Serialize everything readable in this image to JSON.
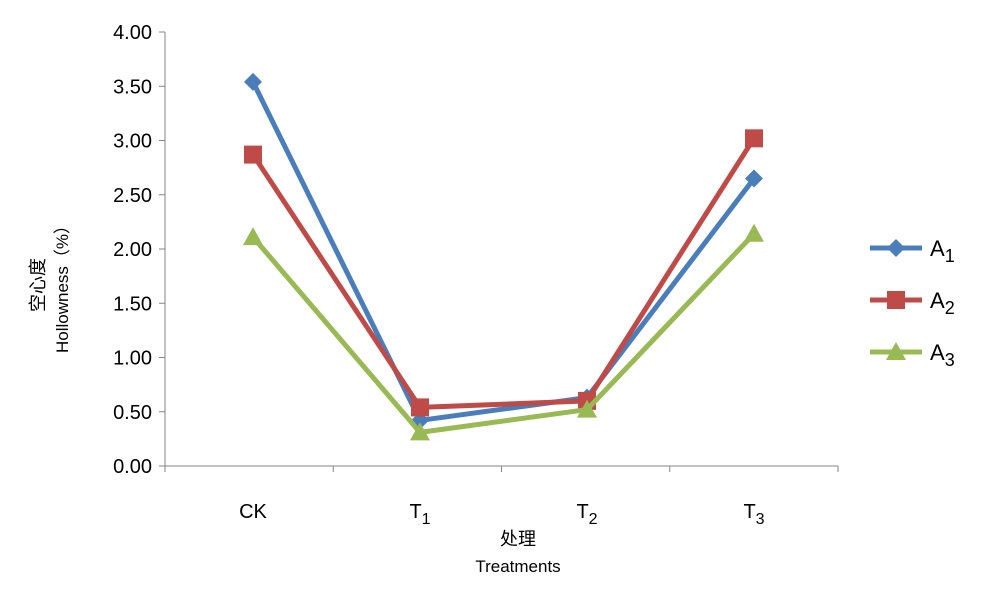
{
  "chart_data": {
    "type": "line",
    "categories": [
      "CK",
      "T1",
      "T2",
      "T3"
    ],
    "category_subscripts": [
      "",
      "1",
      "2",
      "3"
    ],
    "category_bases": [
      "CK",
      "T",
      "T",
      "T"
    ],
    "ylabel_cn": "空心度",
    "ylabel_en": "Hollowness（%）",
    "xlabel_cn": "处理",
    "xlabel_en": "Treatments",
    "ylim": [
      0,
      4
    ],
    "yticks": [
      "0.00",
      "0.50",
      "1.00",
      "1.50",
      "2.00",
      "2.50",
      "3.00",
      "3.50",
      "4.00"
    ],
    "legend_position": "right",
    "series": [
      {
        "name": "A1",
        "base": "A",
        "sub": "1",
        "color": "#4a7ebb",
        "marker": "diamond",
        "values": [
          3.54,
          0.42,
          0.63,
          2.65
        ]
      },
      {
        "name": "A2",
        "base": "A",
        "sub": "2",
        "color": "#be4b48",
        "marker": "square",
        "values": [
          2.87,
          0.54,
          0.6,
          3.02
        ]
      },
      {
        "name": "A3",
        "base": "A",
        "sub": "3",
        "color": "#98b954",
        "marker": "triangle",
        "values": [
          2.11,
          0.31,
          0.52,
          2.14
        ]
      }
    ]
  }
}
